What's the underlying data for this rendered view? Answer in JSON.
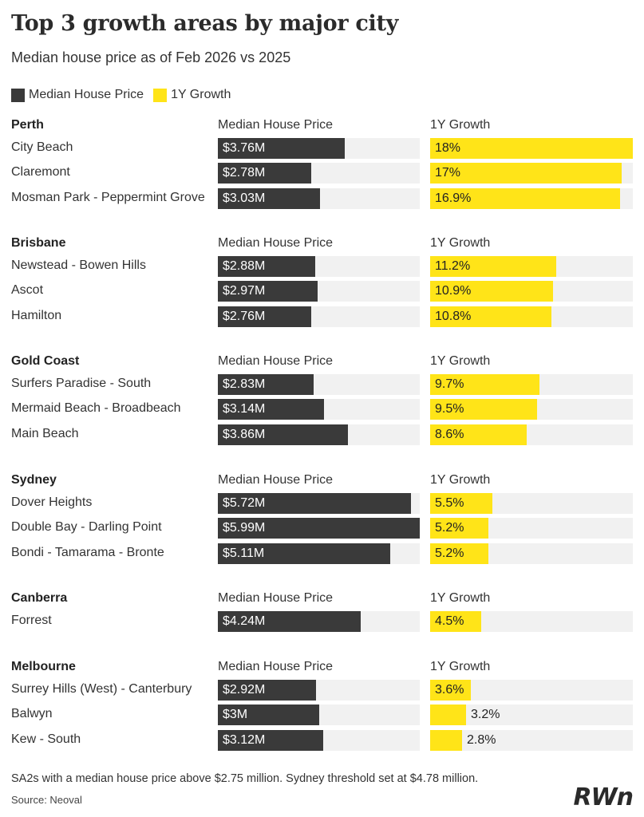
{
  "title": "Top 3 growth areas by major city",
  "subtitle": "Median house price as of Feb 2026 vs 2025",
  "legend": {
    "price": "Median House Price",
    "growth": "1Y Growth"
  },
  "colors": {
    "price": "#3a3a3a",
    "growth": "#ffe418",
    "track": "#f1f1f1"
  },
  "chart_data": {
    "type": "bar",
    "series": [
      {
        "name": "Median House Price",
        "unit": "$M",
        "max": 5.99
      },
      {
        "name": "1Y Growth",
        "unit": "%",
        "max": 18
      }
    ],
    "groups": [
      {
        "city": "Perth",
        "price_header": "Median House Price",
        "growth_header": "1Y Growth",
        "rows": [
          {
            "name": "City Beach",
            "price": 3.76,
            "price_label": "$3.76M",
            "growth": 18,
            "growth_label": "18%"
          },
          {
            "name": "Claremont",
            "price": 2.78,
            "price_label": "$2.78M",
            "growth": 17,
            "growth_label": "17%"
          },
          {
            "name": "Mosman Park - Peppermint Grove",
            "price": 3.03,
            "price_label": "$3.03M",
            "growth": 16.9,
            "growth_label": "16.9%"
          }
        ]
      },
      {
        "city": "Brisbane",
        "price_header": "Median House Price",
        "growth_header": "1Y Growth",
        "rows": [
          {
            "name": "Newstead - Bowen Hills",
            "price": 2.88,
            "price_label": "$2.88M",
            "growth": 11.2,
            "growth_label": "11.2%"
          },
          {
            "name": "Ascot",
            "price": 2.97,
            "price_label": "$2.97M",
            "growth": 10.9,
            "growth_label": "10.9%"
          },
          {
            "name": "Hamilton",
            "price": 2.76,
            "price_label": "$2.76M",
            "growth": 10.8,
            "growth_label": "10.8%"
          }
        ]
      },
      {
        "city": "Gold Coast",
        "price_header": "Median House Price",
        "growth_header": "1Y Growth",
        "rows": [
          {
            "name": "Surfers Paradise - South",
            "price": 2.83,
            "price_label": "$2.83M",
            "growth": 9.7,
            "growth_label": "9.7%"
          },
          {
            "name": "Mermaid Beach - Broadbeach",
            "price": 3.14,
            "price_label": "$3.14M",
            "growth": 9.5,
            "growth_label": "9.5%"
          },
          {
            "name": "Main Beach",
            "price": 3.86,
            "price_label": "$3.86M",
            "growth": 8.6,
            "growth_label": "8.6%"
          }
        ]
      },
      {
        "city": "Sydney",
        "price_header": "Median House Price",
        "growth_header": "1Y Growth",
        "rows": [
          {
            "name": "Dover Heights",
            "price": 5.72,
            "price_label": "$5.72M",
            "growth": 5.5,
            "growth_label": "5.5%"
          },
          {
            "name": "Double Bay - Darling Point",
            "price": 5.99,
            "price_label": "$5.99M",
            "growth": 5.2,
            "growth_label": "5.2%"
          },
          {
            "name": "Bondi - Tamarama - Bronte",
            "price": 5.11,
            "price_label": "$5.11M",
            "growth": 5.2,
            "growth_label": "5.2%"
          }
        ]
      },
      {
        "city": "Canberra",
        "price_header": "Median House Price",
        "growth_header": "1Y Growth",
        "rows": [
          {
            "name": "Forrest",
            "price": 4.24,
            "price_label": "$4.24M",
            "growth": 4.5,
            "growth_label": "4.5%"
          }
        ]
      },
      {
        "city": "Melbourne",
        "price_header": "Median House Price",
        "growth_header": "1Y Growth",
        "rows": [
          {
            "name": "Surrey Hills (West) - Canterbury",
            "price": 2.92,
            "price_label": "$2.92M",
            "growth": 3.6,
            "growth_label": "3.6%"
          },
          {
            "name": "Balwyn",
            "price": 3.0,
            "price_label": "$3M",
            "growth": 3.2,
            "growth_label": "3.2%"
          },
          {
            "name": "Kew - South",
            "price": 3.12,
            "price_label": "$3.12M",
            "growth": 2.8,
            "growth_label": "2.8%"
          }
        ]
      }
    ]
  },
  "footnote": "SA2s with a median house price above $2.75 million. Sydney threshold set at $4.78 million.",
  "source": "Source: Neoval",
  "logo": "RWn"
}
